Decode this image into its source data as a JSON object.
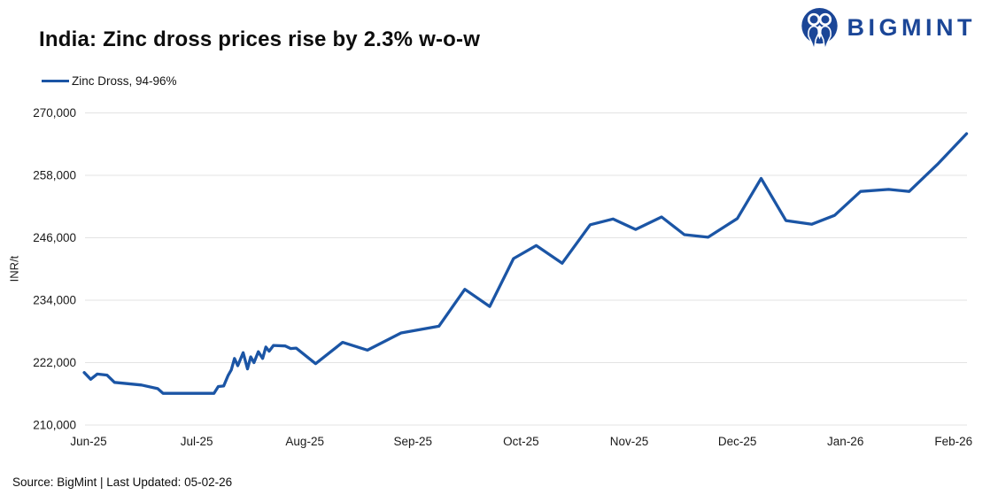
{
  "header": {
    "title": "India: Zinc dross prices rise by 2.3% w-o-w",
    "brand": "BIGMINT"
  },
  "legend": {
    "label": "Zinc Dross, 94-96%"
  },
  "footer": {
    "source": "Source: BigMint | Last Updated: 05-02-26"
  },
  "colors": {
    "line": "#1b55a5",
    "brand": "#1b4697",
    "gridline": "#e3e3e3",
    "text": "#1a1a1a"
  },
  "chart_data": {
    "type": "line",
    "title": "India: Zinc dross prices rise by 2.3% w-o-w",
    "xlabel": "",
    "ylabel": "INR/t",
    "ylim": [
      210000,
      270000
    ],
    "yticks": [
      210000,
      222000,
      234000,
      246000,
      258000,
      270000
    ],
    "ytick_labels": [
      "210,000",
      "222,000",
      "234,000",
      "246,000",
      "258,000",
      "270,000"
    ],
    "categories": [
      "Jun-25",
      "Jul-25",
      "Aug-25",
      "Sep-25",
      "Oct-25",
      "Nov-25",
      "Dec-25",
      "Jan-26",
      "Feb-26"
    ],
    "grid": "horizontal",
    "legend_position": "top-left",
    "x_unit": "month index, 0 = Jun-25",
    "series": [
      {
        "name": "Zinc Dross, 94-96%",
        "points": [
          [
            -0.04,
            220100
          ],
          [
            0.02,
            218800
          ],
          [
            0.08,
            219800
          ],
          [
            0.17,
            219600
          ],
          [
            0.24,
            218200
          ],
          [
            0.49,
            217700
          ],
          [
            0.64,
            217000
          ],
          [
            0.69,
            216100
          ],
          [
            1.16,
            216100
          ],
          [
            1.2,
            217400
          ],
          [
            1.25,
            217500
          ],
          [
            1.29,
            219500
          ],
          [
            1.32,
            220600
          ],
          [
            1.35,
            222800
          ],
          [
            1.38,
            221400
          ],
          [
            1.43,
            223900
          ],
          [
            1.47,
            220800
          ],
          [
            1.5,
            223100
          ],
          [
            1.53,
            222000
          ],
          [
            1.57,
            224100
          ],
          [
            1.61,
            222800
          ],
          [
            1.64,
            225000
          ],
          [
            1.67,
            224200
          ],
          [
            1.71,
            225300
          ],
          [
            1.82,
            225200
          ],
          [
            1.87,
            224700
          ],
          [
            1.92,
            224800
          ],
          [
            2.1,
            221800
          ],
          [
            2.35,
            225900
          ],
          [
            2.58,
            224400
          ],
          [
            2.89,
            227700
          ],
          [
            3.24,
            229000
          ],
          [
            3.48,
            236100
          ],
          [
            3.71,
            232800
          ],
          [
            3.93,
            242000
          ],
          [
            4.14,
            244500
          ],
          [
            4.38,
            241100
          ],
          [
            4.64,
            248500
          ],
          [
            4.85,
            249600
          ],
          [
            5.06,
            247600
          ],
          [
            5.3,
            250000
          ],
          [
            5.51,
            246600
          ],
          [
            5.73,
            246100
          ],
          [
            6.0,
            249700
          ],
          [
            6.22,
            257400
          ],
          [
            6.45,
            249300
          ],
          [
            6.69,
            248600
          ],
          [
            6.9,
            250300
          ],
          [
            7.14,
            254900
          ],
          [
            7.4,
            255300
          ],
          [
            7.59,
            254900
          ],
          [
            7.85,
            260100
          ],
          [
            8.12,
            266000
          ]
        ]
      }
    ]
  }
}
